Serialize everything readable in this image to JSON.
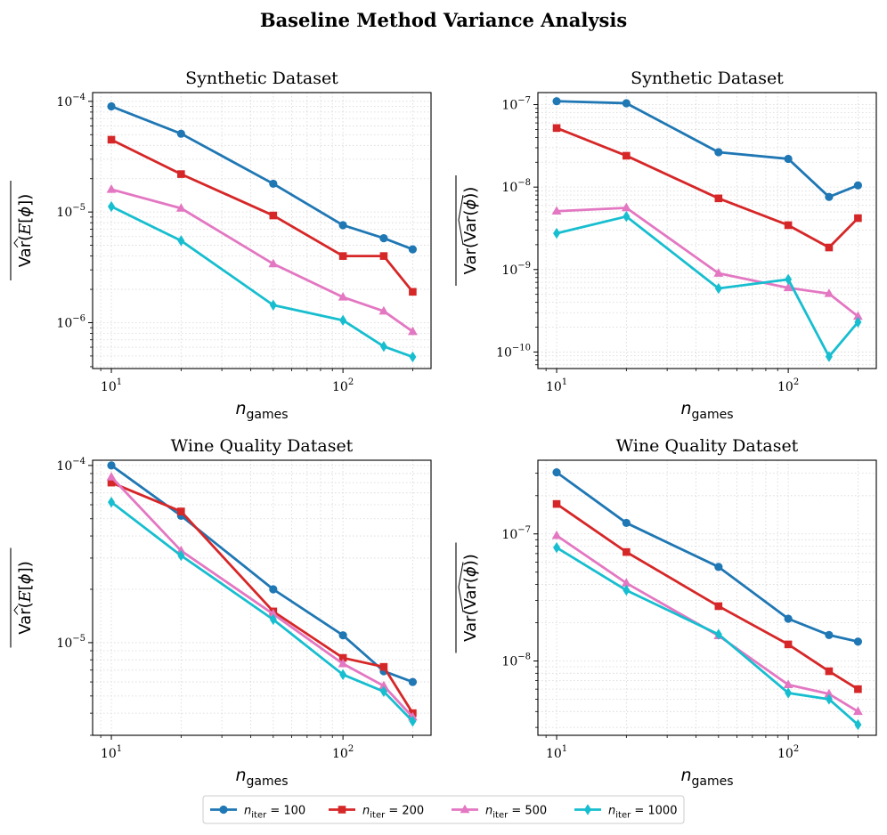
{
  "figure": {
    "title": "Baseline Method Variance Analysis"
  },
  "legend": [
    {
      "label": "n_iter = 100",
      "sub": "iter",
      "value": "100",
      "color": "#1f77b4",
      "marker": "circle"
    },
    {
      "label": "n_iter = 200",
      "sub": "iter",
      "value": "200",
      "color": "#d62728",
      "marker": "square"
    },
    {
      "label": "n_iter = 500",
      "sub": "iter",
      "value": "500",
      "color": "#e377c2",
      "marker": "triangle"
    },
    {
      "label": "n_iter = 1000",
      "sub": "iter",
      "value": "1000",
      "color": "#17becf",
      "marker": "diamond"
    }
  ],
  "chart_data": [
    {
      "type": "line",
      "title": "Synthetic Dataset",
      "xlabel": "n_games",
      "ylabel": "Var(E[φ]) (mean)",
      "xscale": "log",
      "yscale": "log",
      "xlim": [
        8.3,
        240
      ],
      "ylim": [
        3.85e-07,
        0.00012
      ],
      "xticks": [
        {
          "value": 10,
          "base": "10",
          "exp": "1"
        },
        {
          "value": 100,
          "base": "10",
          "exp": "2"
        }
      ],
      "yticks": [
        {
          "value": 1e-06,
          "base": "10",
          "exp": "−6"
        },
        {
          "value": 1e-05,
          "base": "10",
          "exp": "−5"
        },
        {
          "value": 0.0001,
          "base": "10",
          "exp": "−4"
        }
      ],
      "x": [
        10,
        20,
        50,
        100,
        150,
        200
      ],
      "series": [
        {
          "name": "n_iter = 100",
          "values": [
            9e-05,
            5.1e-05,
            1.8e-05,
            7.6e-06,
            5.8e-06,
            4.6e-06
          ]
        },
        {
          "name": "n_iter = 200",
          "values": [
            4.5e-05,
            2.2e-05,
            9.3e-06,
            4e-06,
            4e-06,
            1.9e-06
          ]
        },
        {
          "name": "n_iter = 500",
          "values": [
            1.6e-05,
            1.08e-05,
            3.4e-06,
            1.7e-06,
            1.27e-06,
            8.3e-07
          ]
        },
        {
          "name": "n_iter = 1000",
          "values": [
            1.12e-05,
            5.5e-06,
            1.44e-06,
            1.05e-06,
            6.1e-07,
            4.9e-07
          ]
        }
      ]
    },
    {
      "type": "line",
      "title": "Synthetic Dataset",
      "xlabel": "n_games",
      "ylabel": "Var(Var(φ)) (mean)",
      "xscale": "log",
      "yscale": "log",
      "xlim": [
        8.3,
        240
      ],
      "ylim": [
        6.3e-11,
        1.4e-07
      ],
      "xticks": [
        {
          "value": 10,
          "base": "10",
          "exp": "1"
        },
        {
          "value": 100,
          "base": "10",
          "exp": "2"
        }
      ],
      "yticks": [
        {
          "value": 1e-10,
          "base": "10",
          "exp": "−10"
        },
        {
          "value": 1e-09,
          "base": "10",
          "exp": "−9"
        },
        {
          "value": 1e-08,
          "base": "10",
          "exp": "−8"
        },
        {
          "value": 1e-07,
          "base": "10",
          "exp": "−7"
        }
      ],
      "x": [
        10,
        20,
        50,
        100,
        150,
        200
      ],
      "series": [
        {
          "name": "n_iter = 100",
          "values": [
            1.1e-07,
            1.04e-07,
            2.65e-08,
            2.2e-08,
            7.6e-09,
            1.05e-08
          ]
        },
        {
          "name": "n_iter = 200",
          "values": [
            5.2e-08,
            2.4e-08,
            7.3e-09,
            3.45e-09,
            1.85e-09,
            4.2e-09
          ]
        },
        {
          "name": "n_iter = 500",
          "values": [
            5.1e-09,
            5.6e-09,
            9e-10,
            6e-10,
            5.1e-10,
            2.7e-10
          ]
        },
        {
          "name": "n_iter = 1000",
          "values": [
            2.75e-09,
            4.4e-09,
            5.9e-10,
            7.6e-10,
            8.8e-11,
            2.3e-10
          ]
        }
      ]
    },
    {
      "type": "line",
      "title": "Wine Quality Dataset",
      "xlabel": "n_games",
      "ylabel": "Var(E[φ]) (mean)",
      "xscale": "log",
      "yscale": "log",
      "xlim": [
        8.3,
        240
      ],
      "ylim": [
        3e-06,
        0.000107
      ],
      "xticks": [
        {
          "value": 10,
          "base": "10",
          "exp": "1"
        },
        {
          "value": 100,
          "base": "10",
          "exp": "2"
        }
      ],
      "yticks": [
        {
          "value": 1e-05,
          "base": "10",
          "exp": "−5"
        },
        {
          "value": 0.0001,
          "base": "10",
          "exp": "−4"
        }
      ],
      "x": [
        10,
        20,
        50,
        100,
        150,
        200
      ],
      "series": [
        {
          "name": "n_iter = 100",
          "values": [
            0.0001,
            5.2e-05,
            2e-05,
            1.1e-05,
            6.9e-06,
            6e-06
          ]
        },
        {
          "name": "n_iter = 200",
          "values": [
            8e-05,
            5.5e-05,
            1.5e-05,
            8.2e-06,
            7.3e-06,
            4e-06
          ]
        },
        {
          "name": "n_iter = 500",
          "values": [
            8.6e-05,
            3.3e-05,
            1.45e-05,
            7.6e-06,
            5.7e-06,
            3.8e-06
          ]
        },
        {
          "name": "n_iter = 1000",
          "values": [
            6.2e-05,
            3.1e-05,
            1.35e-05,
            6.6e-06,
            5.3e-06,
            3.6e-06
          ]
        }
      ]
    },
    {
      "type": "line",
      "title": "Wine Quality Dataset",
      "xlabel": "n_games",
      "ylabel": "Var(Var(φ)) (mean)",
      "xscale": "log",
      "yscale": "log",
      "xlim": [
        8.3,
        240
      ],
      "ylim": [
        2.6e-09,
        3.8e-07
      ],
      "xticks": [
        {
          "value": 10,
          "base": "10",
          "exp": "1"
        },
        {
          "value": 100,
          "base": "10",
          "exp": "2"
        }
      ],
      "yticks": [
        {
          "value": 1e-08,
          "base": "10",
          "exp": "−8"
        },
        {
          "value": 1e-07,
          "base": "10",
          "exp": "−7"
        }
      ],
      "x": [
        10,
        20,
        50,
        100,
        150,
        200
      ],
      "series": [
        {
          "name": "n_iter = 100",
          "values": [
            3.05e-07,
            1.22e-07,
            5.5e-08,
            2.15e-08,
            1.6e-08,
            1.42e-08
          ]
        },
        {
          "name": "n_iter = 200",
          "values": [
            1.72e-07,
            7.2e-08,
            2.7e-08,
            1.35e-08,
            8.3e-09,
            6e-09
          ]
        },
        {
          "name": "n_iter = 500",
          "values": [
            9.7e-08,
            4.1e-08,
            1.58e-08,
            6.5e-09,
            5.5e-09,
            4e-09
          ]
        },
        {
          "name": "n_iter = 1000",
          "values": [
            7.8e-08,
            3.6e-08,
            1.62e-08,
            5.6e-09,
            5e-09,
            3.15e-09
          ]
        }
      ]
    }
  ]
}
